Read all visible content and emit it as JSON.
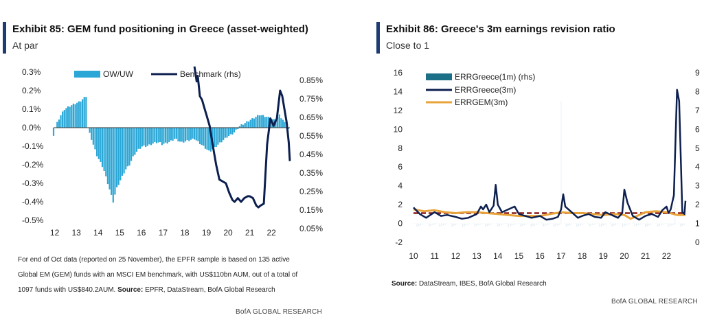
{
  "exhibit85": {
    "title": "Exhibit 85: GEM fund positioning in Greece (asset-weighted)",
    "subtitle": "At par",
    "note_line1": "For end of Oct data (reported on 25 November), the EPFR sample is based on 135 active",
    "note_line2": "Global EM (GEM) funds with an MSCI EM benchmark, with US$110bn AUM, out of a total of",
    "note_line3_text": "1097 funds with US$840.2AUM. ",
    "note_source_label": "Source:",
    "note_source_text": " EPFR, DataStream, BofA Global Research",
    "brand": "BofA GLOBAL RESEARCH"
  },
  "exhibit86": {
    "title": "Exhibit 86: Greece's 3m earnings revision ratio",
    "subtitle": "Close to 1",
    "source_label": "Source:",
    "source_text": " DataStream, IBES, BofA Global Research",
    "brand": "BofA GLOBAL RESEARCH"
  },
  "colors": {
    "navy": "#0d1f4f",
    "lightblue": "#2aa7d6",
    "teal": "#1b6f86",
    "orange": "#e8a33a",
    "darkred": "#8b1a1a",
    "titlebar": "#1f3b73"
  },
  "chart_data": [
    {
      "type": "bar",
      "title": "Exhibit 85: GEM fund positioning in Greece (asset-weighted)",
      "x_ticks": [
        "12",
        "13",
        "14",
        "15",
        "16",
        "17",
        "18",
        "19",
        "20",
        "21",
        "22"
      ],
      "x_range": [
        2012.0,
        2022.9
      ],
      "y_left_ticks": [
        "0.3%",
        "0.2%",
        "0.1%",
        "0.0%",
        "-0.1%",
        "-0.2%",
        "-0.3%",
        "-0.4%",
        "-0.5%"
      ],
      "y_left_range": [
        -0.5,
        0.3
      ],
      "y_right_ticks": [
        "0.85%",
        "0.75%",
        "0.65%",
        "0.55%",
        "0.45%",
        "0.35%",
        "0.25%",
        "0.15%",
        "0.05%"
      ],
      "y_right_range": [
        0.05,
        0.85
      ],
      "legend": [
        "OW/UW",
        "Benchmark (rhs)"
      ],
      "series": [
        {
          "name": "OW/UW",
          "axis": "left",
          "kind": "bar",
          "anchors_t": [
            2012.0,
            2012.1,
            2012.3,
            2012.5,
            2012.8,
            2013.0,
            2013.2,
            2013.5,
            2013.55,
            2013.8,
            2014.0,
            2014.3,
            2014.6,
            2014.75,
            2014.9,
            2015.1,
            2015.3,
            2015.5,
            2015.7,
            2015.9,
            2016.1,
            2016.3,
            2016.5,
            2016.7,
            2016.9,
            2017.0,
            2017.3,
            2017.6,
            2017.9,
            2018.2,
            2018.5,
            2018.8,
            2019.0,
            2019.2,
            2019.5,
            2019.8,
            2020.0,
            2020.3,
            2020.6,
            2020.9,
            2021.2,
            2021.5,
            2021.8,
            2022.0,
            2022.2,
            2022.4,
            2022.6,
            2022.9
          ],
          "anchors_v": [
            -0.04,
            0.01,
            0.06,
            0.1,
            0.12,
            0.13,
            0.14,
            0.17,
            0.01,
            -0.08,
            -0.15,
            -0.22,
            -0.34,
            -0.4,
            -0.33,
            -0.28,
            -0.23,
            -0.2,
            -0.15,
            -0.12,
            -0.1,
            -0.1,
            -0.09,
            -0.08,
            -0.08,
            -0.09,
            -0.08,
            -0.06,
            -0.08,
            -0.07,
            -0.06,
            -0.09,
            -0.11,
            -0.13,
            -0.1,
            -0.07,
            -0.05,
            -0.03,
            0.01,
            0.03,
            0.05,
            0.07,
            0.06,
            0.05,
            0.04,
            0.07,
            0.04,
            -0.02
          ]
        },
        {
          "name": "Benchmark (rhs)",
          "axis": "right",
          "kind": "line",
          "t": [
            2018.5,
            2018.6,
            2018.65,
            2018.75,
            2018.85,
            2018.95,
            2019.05,
            2019.2,
            2019.35,
            2019.5,
            2019.65,
            2019.8,
            2019.95,
            2020.1,
            2020.25,
            2020.35,
            2020.5,
            2020.65,
            2020.8,
            2020.95,
            2021.05,
            2021.2,
            2021.35,
            2021.45,
            2021.55,
            2021.7,
            2021.85,
            2022.0,
            2022.15,
            2022.3,
            2022.45,
            2022.55,
            2022.65,
            2022.75,
            2022.85,
            2022.9
          ],
          "v": [
            0.88,
            0.8,
            0.83,
            0.72,
            0.7,
            0.66,
            0.62,
            0.56,
            0.45,
            0.35,
            0.27,
            0.26,
            0.25,
            0.2,
            0.16,
            0.15,
            0.17,
            0.15,
            0.17,
            0.18,
            0.18,
            0.17,
            0.13,
            0.12,
            0.13,
            0.14,
            0.46,
            0.6,
            0.56,
            0.6,
            0.75,
            0.72,
            0.65,
            0.58,
            0.47,
            0.37
          ]
        }
      ]
    },
    {
      "type": "line",
      "title": "Exhibit 86: Greece's 3m earnings revision ratio",
      "x_ticks": [
        "10",
        "11",
        "12",
        "13",
        "14",
        "15",
        "16",
        "17",
        "18",
        "19",
        "20",
        "21",
        "22"
      ],
      "x_range": [
        2010.0,
        2022.9
      ],
      "y_left_ticks": [
        "16",
        "14",
        "12",
        "10",
        "8",
        "6",
        "4",
        "2",
        "0",
        "-2"
      ],
      "y_left_range": [
        -2,
        16
      ],
      "y_right_ticks": [
        "9",
        "8",
        "7",
        "6",
        "5",
        "4",
        "3",
        "2",
        "1",
        "0"
      ],
      "y_right_range": [
        0,
        9
      ],
      "legend": [
        "ERRGreece(1m) (rhs)",
        "ERRGreece(3m)",
        "ERRGEM(3m)"
      ],
      "series": [
        {
          "name": "ERRGreece(3m)",
          "axis": "left",
          "t": [
            2010.0,
            2010.3,
            2010.6,
            2011.0,
            2011.3,
            2011.6,
            2012.0,
            2012.3,
            2012.6,
            2013.0,
            2013.2,
            2013.3,
            2013.45,
            2013.6,
            2013.8,
            2013.9,
            2014.0,
            2014.2,
            2014.5,
            2014.8,
            2015.0,
            2015.3,
            2015.6,
            2016.0,
            2016.3,
            2016.6,
            2016.85,
            2017.0,
            2017.1,
            2017.2,
            2017.5,
            2017.8,
            2018.0,
            2018.3,
            2018.6,
            2018.9,
            2019.1,
            2019.4,
            2019.7,
            2019.9,
            2020.0,
            2020.15,
            2020.4,
            2020.7,
            2021.0,
            2021.3,
            2021.6,
            2021.8,
            2022.0,
            2022.1,
            2022.2,
            2022.35,
            2022.5,
            2022.6,
            2022.75,
            2022.85,
            2022.9
          ],
          "v": [
            1.7,
            1.0,
            0.6,
            1.2,
            0.8,
            0.9,
            0.7,
            0.5,
            0.6,
            1.0,
            1.8,
            1.5,
            2.0,
            1.2,
            1.9,
            4.1,
            2.0,
            1.2,
            1.5,
            1.8,
            1.0,
            0.8,
            0.6,
            0.8,
            0.4,
            0.5,
            0.7,
            1.5,
            3.1,
            1.8,
            1.2,
            0.6,
            0.8,
            1.0,
            0.7,
            0.6,
            1.2,
            0.9,
            0.6,
            1.1,
            3.6,
            2.2,
            0.8,
            0.4,
            0.8,
            1.0,
            0.7,
            1.4,
            1.8,
            1.1,
            1.5,
            3.0,
            14.2,
            13.0,
            1.2,
            1.0,
            2.4
          ]
        },
        {
          "name": "ERRGEM(3m)",
          "axis": "left",
          "t": [
            2010.0,
            2010.5,
            2011.0,
            2011.5,
            2012.0,
            2012.5,
            2013.0,
            2013.5,
            2014.0,
            2014.5,
            2015.0,
            2015.5,
            2016.0,
            2016.5,
            2017.0,
            2017.5,
            2018.0,
            2018.5,
            2019.0,
            2019.5,
            2020.0,
            2020.3,
            2020.7,
            2021.0,
            2021.5,
            2022.0,
            2022.5,
            2022.9
          ],
          "v": [
            1.5,
            1.3,
            1.4,
            1.2,
            1.1,
            1.2,
            1.2,
            1.1,
            1.0,
            0.9,
            0.8,
            0.8,
            0.8,
            1.0,
            1.2,
            1.1,
            1.1,
            1.0,
            0.9,
            1.0,
            0.9,
            0.5,
            0.9,
            1.2,
            1.3,
            1.2,
            0.9,
            0.9
          ]
        },
        {
          "name": "Average (dashed)",
          "axis": "left",
          "t": [
            2010.0,
            2022.9
          ],
          "v": [
            1.1,
            1.1
          ]
        }
      ]
    }
  ]
}
